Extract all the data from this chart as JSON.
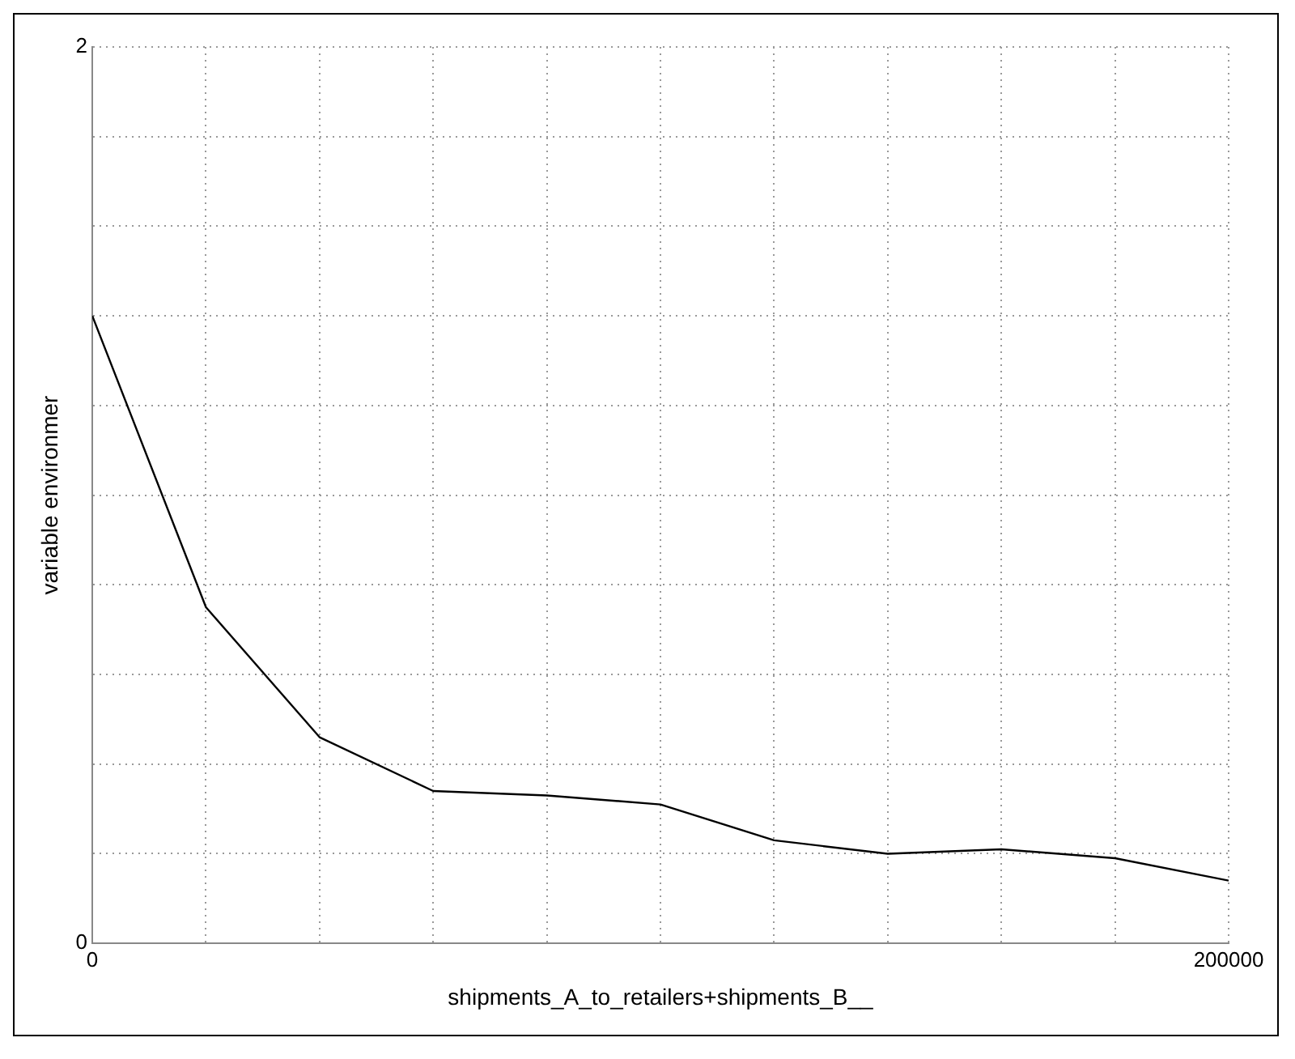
{
  "chart_data": {
    "type": "line",
    "xlabel": "shipments_A_to_retailers+shipments_B__",
    "ylabel": "variable environmer",
    "x": [
      0,
      20000,
      40000,
      60000,
      80000,
      100000,
      120000,
      140000,
      160000,
      180000,
      200000
    ],
    "series": [
      {
        "color": "#000000",
        "values": [
          1.4,
          0.75,
          0.46,
          0.34,
          0.33,
          0.31,
          0.23,
          0.2,
          0.21,
          0.19,
          0.14
        ]
      }
    ],
    "xlim": [
      0,
      200000
    ],
    "xticks": [
      0,
      {
        "value": 20000,
        "label": null
      },
      {
        "value": 40000,
        "label": null
      },
      {
        "value": 60000,
        "label": null
      },
      {
        "value": 80000,
        "label": null
      },
      {
        "value": 100000,
        "label": null
      },
      {
        "value": 120000,
        "label": null
      },
      {
        "value": 140000,
        "label": null
      },
      {
        "value": 160000,
        "label": null
      },
      {
        "value": 180000,
        "label": null
      },
      200000
    ],
    "ylim": [
      0,
      2
    ],
    "yticks": [
      0,
      {
        "value": 0.2,
        "label": null
      },
      {
        "value": 0.4,
        "label": null
      },
      {
        "value": 0.6,
        "label": null
      },
      {
        "value": 0.8,
        "label": null
      },
      {
        "value": 1,
        "label": null
      },
      {
        "value": 1.2,
        "label": null
      },
      {
        "value": 1.4,
        "label": null
      },
      {
        "value": 1.6,
        "label": null
      },
      {
        "value": 1.8,
        "label": null
      },
      2
    ],
    "grid": true,
    "marker": "none",
    "line_style": "solid",
    "legend": false
  }
}
